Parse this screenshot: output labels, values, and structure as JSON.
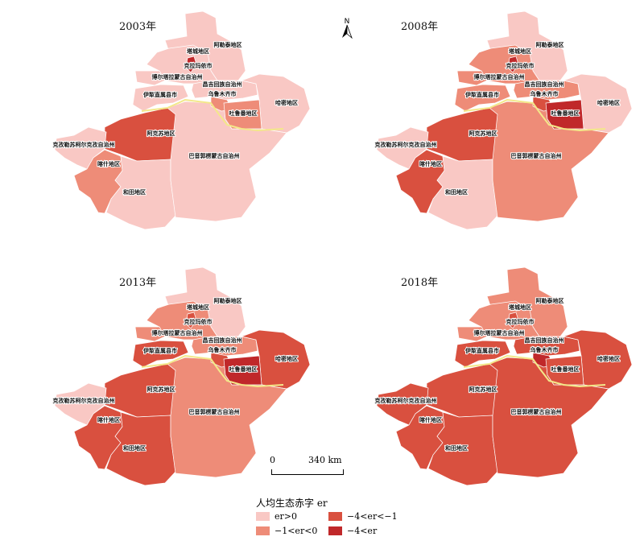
{
  "panels": [
    {
      "year": "2003年",
      "classes": {
        "altay": 0,
        "tacheng": 0,
        "karamay": 3,
        "bortala": 0,
        "ili": 0,
        "changji": 0,
        "urumqi": 1,
        "turpan": 1,
        "hami": 0,
        "aksu": 2,
        "kizilsu": 0,
        "kashgar": 1,
        "hotan": 0,
        "bayingol": 0
      }
    },
    {
      "year": "2008年",
      "classes": {
        "altay": 0,
        "tacheng": 1,
        "karamay": 3,
        "bortala": 1,
        "ili": 1,
        "changji": 1,
        "urumqi": 2,
        "turpan": 3,
        "hami": 0,
        "aksu": 2,
        "kizilsu": 0,
        "kashgar": 2,
        "hotan": 0,
        "bayingol": 1
      }
    },
    {
      "year": "2013年",
      "classes": {
        "altay": 0,
        "tacheng": 1,
        "karamay": 2,
        "bortala": 1,
        "ili": 2,
        "changji": 1,
        "urumqi": 2,
        "turpan": 3,
        "hami": 2,
        "aksu": 2,
        "kizilsu": 0,
        "kashgar": 2,
        "hotan": 2,
        "bayingol": 1
      }
    },
    {
      "year": "2018年",
      "classes": {
        "altay": 1,
        "tacheng": 1,
        "karamay": 2,
        "bortala": 1,
        "ili": 2,
        "changji": 2,
        "urumqi": 3,
        "turpan": 2,
        "hami": 2,
        "aksu": 2,
        "kizilsu": 2,
        "kashgar": 2,
        "hotan": 2,
        "bayingol": 2
      }
    }
  ],
  "region_labels": {
    "altay": "阿勒泰地区",
    "tacheng": "塔城地区",
    "karamay": "克拉玛依市",
    "bortala": "博尔塔拉蒙古自治州",
    "changji": "昌吉回族自治州",
    "ili": "伊犁直属县市",
    "urumqi": "乌鲁木齐市",
    "turpan": "吐鲁番地区",
    "hami": "哈密地区",
    "aksu": "阿克苏地区",
    "kizilsu": "克孜勒苏柯尔克孜自治州",
    "kashgar": "喀什地区",
    "hotan": "和田地区",
    "bayingol": "巴音郭楞蒙古自治州"
  },
  "north_label": "N",
  "scale": {
    "start": "0",
    "end": "340 km"
  },
  "legend": {
    "title": "人均生态赤字 er",
    "items": [
      {
        "label": "er>0",
        "color": "#f9c8c4"
      },
      {
        "label": "−1<er<0",
        "color": "#ee8c78"
      },
      {
        "label": "−4<er<−1",
        "color": "#d9503f"
      },
      {
        "label": "−4<er",
        "color": "#c0282a"
      }
    ]
  },
  "boundary_color": "#f3e88a"
}
